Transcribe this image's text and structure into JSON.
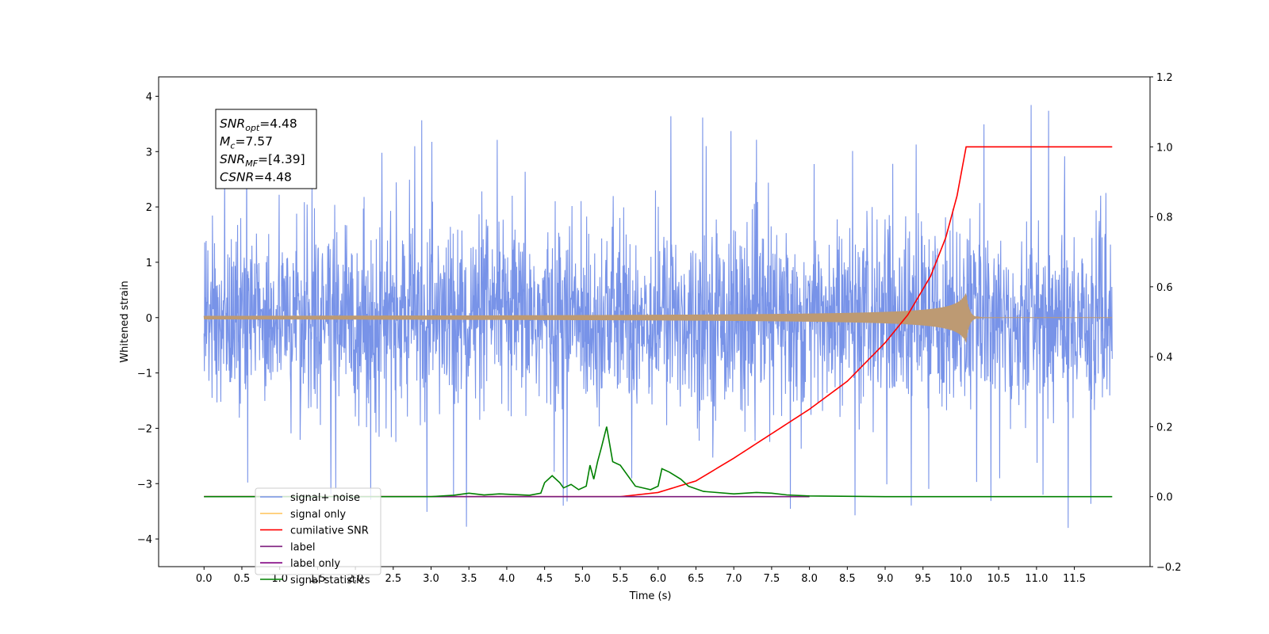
{
  "chart_data": {
    "type": "line",
    "title": "",
    "xlabel": "Time (s)",
    "ylabel": "Whitened strain",
    "xlim": [
      -0.6,
      12.5
    ],
    "ylim": [
      -4.5,
      4.35
    ],
    "y2lim": [
      -0.2,
      1.2
    ],
    "xticks": [
      "0.0",
      "0.5",
      "1.0",
      "1.5",
      "2.0",
      "2.5",
      "3.0",
      "3.5",
      "4.0",
      "4.5",
      "5.0",
      "5.5",
      "6.0",
      "6.5",
      "7.0",
      "7.5",
      "8.0",
      "8.5",
      "9.0",
      "9.5",
      "10.0",
      "10.5",
      "11.0",
      "11.5"
    ],
    "yticks": [
      "4",
      "3",
      "2",
      "1",
      "0",
      "−1",
      "−2",
      "−3",
      "−4"
    ],
    "y2ticks": [
      "1.2",
      "1.0",
      "0.8",
      "0.6",
      "0.4",
      "0.2",
      "0.0",
      "−0.2"
    ],
    "grid": false,
    "legend_position": "lower-left",
    "annotation": {
      "lines": [
        {
          "main": "SNR",
          "sub": "opt",
          "rest": "=4.48"
        },
        {
          "main": "M",
          "sub": "c",
          "rest": "=7.57"
        },
        {
          "main": "SNR",
          "sub": "MF",
          "rest": "=[4.39]"
        },
        {
          "main": "CSNR",
          "sub": "",
          "rest": "=4.48"
        }
      ]
    },
    "series": [
      {
        "name": "signal+ noise",
        "color": "#7893e8",
        "axis": "left",
        "t_start": 0.0,
        "t_end": 12.0,
        "noise_std": 0.8,
        "spike_max": 3.95,
        "spike_min": -4.1
      },
      {
        "name": "signal only",
        "color": "#ffc866",
        "axis": "left",
        "merge_time": 10.07,
        "peak_amplitude": 0.45,
        "drawn_color": "#bd9a73"
      },
      {
        "name": "cumilative SNR",
        "color": "#ff0000",
        "axis": "right",
        "x": [
          0.0,
          5.5,
          6.0,
          6.5,
          7.0,
          7.5,
          8.0,
          8.5,
          9.0,
          9.3,
          9.6,
          9.8,
          9.95,
          10.07,
          12.0
        ],
        "y": [
          0.0,
          0.0,
          0.012,
          0.045,
          0.11,
          0.18,
          0.25,
          0.33,
          0.44,
          0.52,
          0.63,
          0.74,
          0.86,
          1.0,
          1.0
        ]
      },
      {
        "name": "label",
        "color": "#7b1a7b",
        "axis": "right",
        "x": [
          0.0,
          8.0
        ],
        "y": [
          0.0,
          0.0
        ]
      },
      {
        "name": "label only",
        "color": "#800080",
        "axis": "right",
        "hidden": true
      },
      {
        "name": "signal statistics",
        "color": "#008000",
        "axis": "right",
        "x": [
          0.0,
          3.0,
          3.3,
          3.5,
          3.7,
          3.9,
          4.3,
          4.45,
          4.5,
          4.6,
          4.7,
          4.75,
          4.85,
          4.95,
          5.05,
          5.1,
          5.15,
          5.2,
          5.25,
          5.32,
          5.4,
          5.5,
          5.7,
          5.9,
          6.0,
          6.05,
          6.15,
          6.3,
          6.4,
          6.6,
          7.0,
          7.3,
          7.5,
          7.7,
          8.0,
          9.0,
          12.0
        ],
        "y": [
          0.0,
          0.0,
          0.004,
          0.01,
          0.005,
          0.008,
          0.004,
          0.01,
          0.04,
          0.06,
          0.04,
          0.025,
          0.035,
          0.02,
          0.03,
          0.09,
          0.05,
          0.1,
          0.14,
          0.2,
          0.1,
          0.09,
          0.03,
          0.02,
          0.03,
          0.08,
          0.07,
          0.05,
          0.03,
          0.015,
          0.008,
          0.012,
          0.01,
          0.005,
          0.002,
          0.0,
          0.0
        ]
      }
    ]
  }
}
